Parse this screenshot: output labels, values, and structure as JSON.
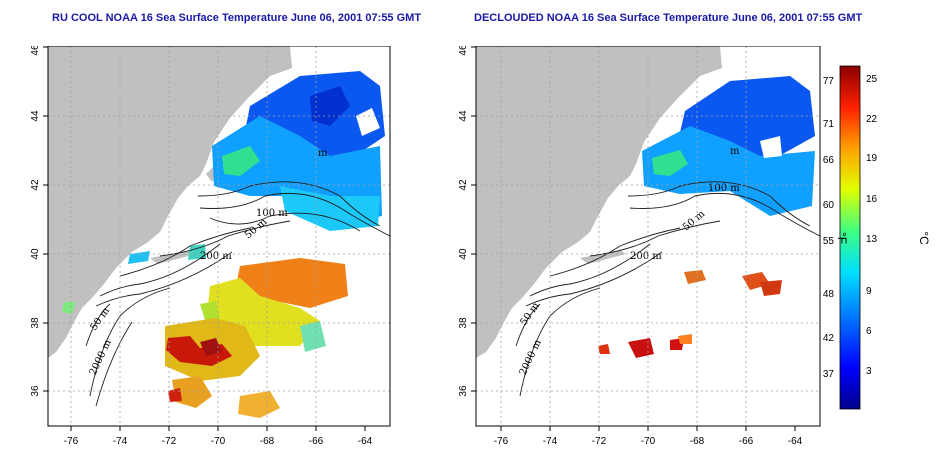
{
  "left_panel": {
    "title": "RU COOL NOAA 16 Sea Surface Temperature June 06, 2001 07:55 GMT"
  },
  "right_panel": {
    "title": "DECLOUDED NOAA 16 Sea Surface Temperature June 06, 2001 07:55 GMT"
  },
  "axes": {
    "x_ticks": [
      "-76",
      "-74",
      "-72",
      "-70",
      "-68",
      "-66",
      "-64"
    ],
    "y_ticks": [
      "36",
      "38",
      "40",
      "42",
      "44",
      "46"
    ]
  },
  "contour_labels_left": [
    "50 m",
    "100 m",
    "200 m",
    "50 m",
    "2000 m",
    "100 m",
    "m"
  ],
  "contour_labels_right": [
    "50 m",
    "100 m",
    "200 m",
    "50 m",
    "2000 m",
    "m"
  ],
  "colorbar": {
    "fahrenheit_ticks": [
      "77",
      "71",
      "66",
      "60",
      "55",
      "48",
      "42",
      "37"
    ],
    "celsius_ticks": [
      "25",
      "22",
      "19",
      "16",
      "13",
      "9",
      "6",
      "3"
    ],
    "left_unit": "°F",
    "right_unit": "°C",
    "colors": [
      "#00008b",
      "#0000ff",
      "#0080ff",
      "#00e0ff",
      "#40ff80",
      "#e0ff00",
      "#ffa000",
      "#ff2000",
      "#8b0000"
    ]
  },
  "colors": {
    "land": "#c0c0c0",
    "cloud": "#ffffff",
    "title": "#1a1aa6"
  }
}
